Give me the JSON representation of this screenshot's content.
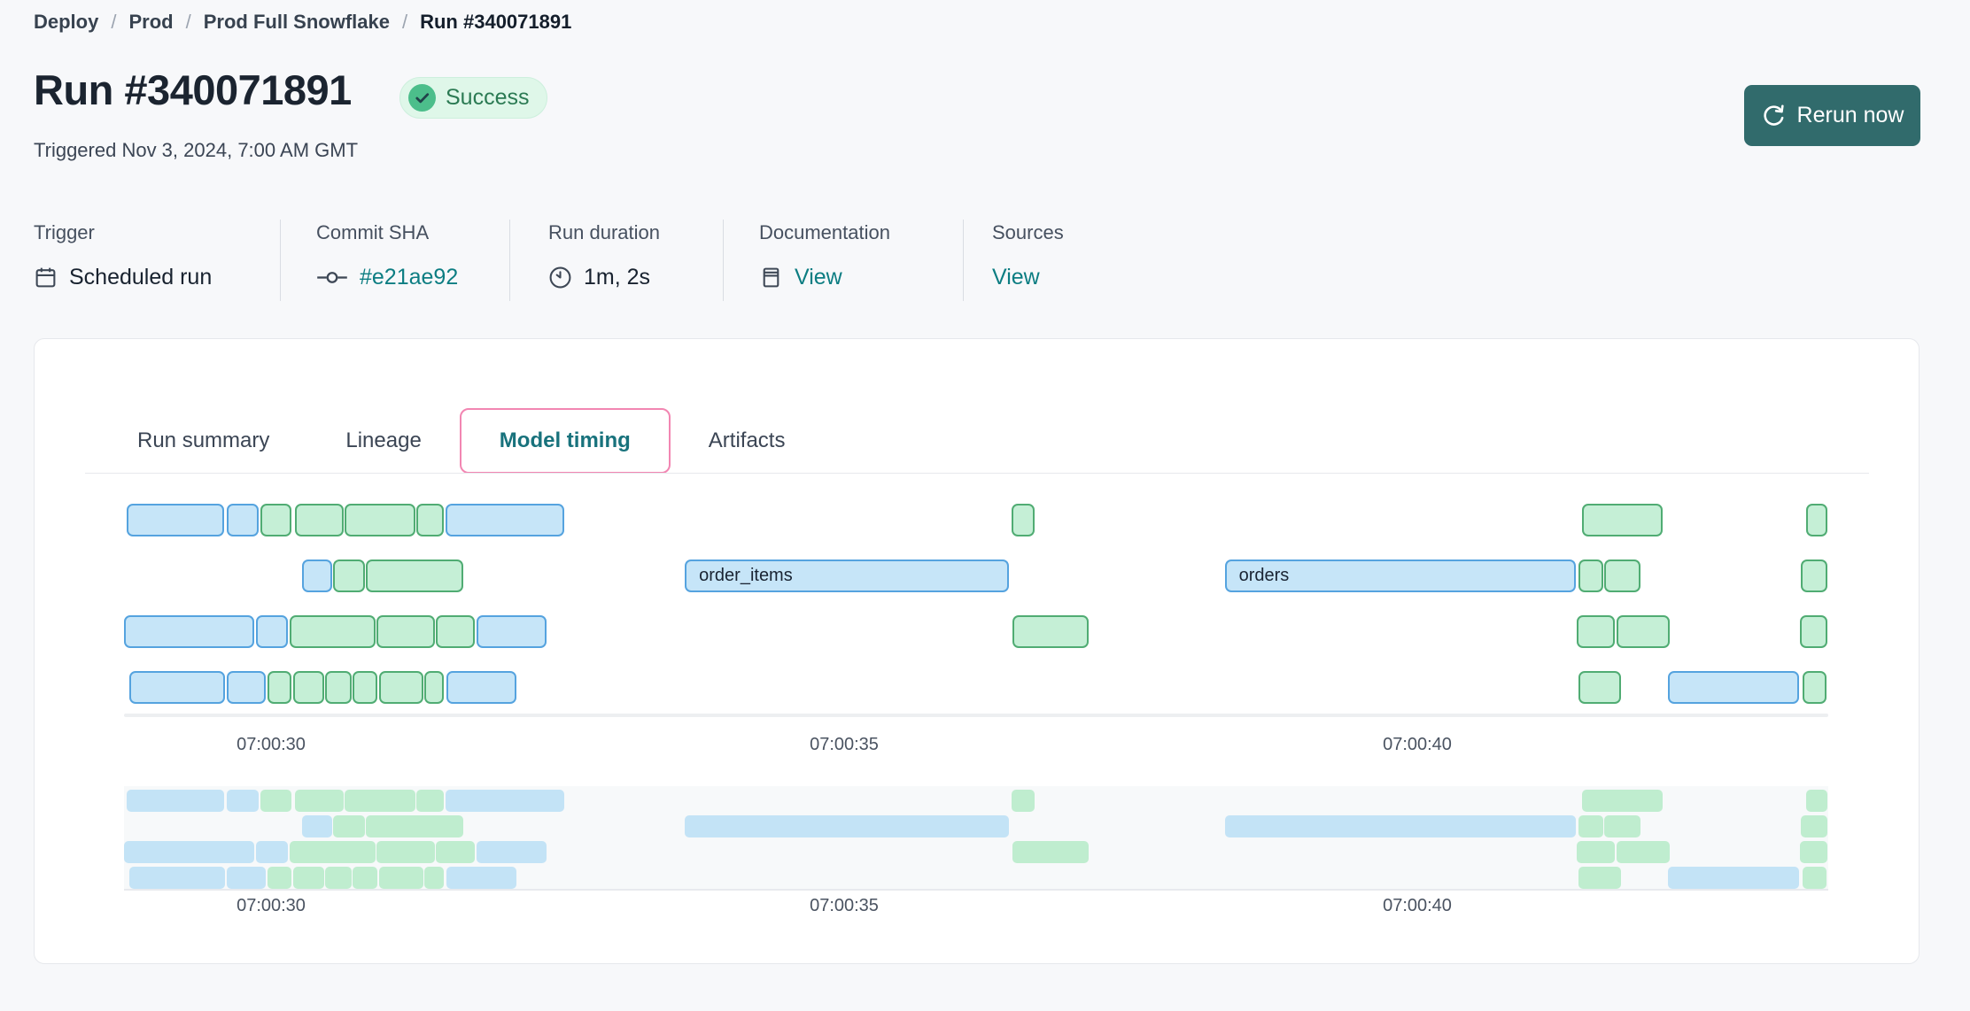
{
  "breadcrumb": {
    "separator": "/",
    "items": [
      {
        "label": "Deploy"
      },
      {
        "label": "Prod"
      },
      {
        "label": "Prod Full Snowflake"
      },
      {
        "label": "Run #340071891"
      }
    ]
  },
  "header": {
    "title": "Run #340071891",
    "status_label": "Success",
    "triggered_text": "Triggered Nov 3, 2024, 7:00 AM GMT",
    "rerun_label": "Rerun now"
  },
  "meta": {
    "items": [
      {
        "label": "Trigger",
        "value": "Scheduled run",
        "icon": "calendar-icon",
        "link": false
      },
      {
        "label": "Commit SHA",
        "value": "#e21ae92",
        "icon": "commit-icon",
        "link": true
      },
      {
        "label": "Run duration",
        "value": "1m, 2s",
        "icon": "clock-icon",
        "link": false
      },
      {
        "label": "Documentation",
        "value": "View",
        "icon": "document-icon",
        "link": true
      },
      {
        "label": "Sources",
        "value": "View",
        "icon": null,
        "link": true
      }
    ]
  },
  "tabs": [
    {
      "label": "Run summary",
      "active": false
    },
    {
      "label": "Lineage",
      "active": false
    },
    {
      "label": "Model timing",
      "active": true
    },
    {
      "label": "Artifacts",
      "active": false
    }
  ],
  "chart_data": {
    "type": "gantt",
    "title": "Model timing",
    "time_unit": "seconds after 07:00:00 GMT",
    "time_axis": {
      "domain": [
        28.7,
        43.6
      ],
      "ticks": [
        {
          "t": 30,
          "label": "07:00:30"
        },
        {
          "t": 35,
          "label": "07:00:35"
        },
        {
          "t": 40,
          "label": "07:00:40"
        }
      ]
    },
    "colors": {
      "blue_fill": "#C6E5F8",
      "blue_border": "#55A3DF",
      "green_fill": "#C5EFD6",
      "green_border": "#50AC73"
    },
    "rows": 4,
    "bars": [
      {
        "row": 0,
        "start": 28.74,
        "end": 29.59,
        "color": "blue"
      },
      {
        "row": 0,
        "start": 29.61,
        "end": 29.89,
        "color": "blue"
      },
      {
        "row": 0,
        "start": 29.91,
        "end": 30.18,
        "color": "green"
      },
      {
        "row": 0,
        "start": 30.21,
        "end": 30.63,
        "color": "green"
      },
      {
        "row": 0,
        "start": 30.64,
        "end": 31.26,
        "color": "green"
      },
      {
        "row": 0,
        "start": 31.27,
        "end": 31.51,
        "color": "green"
      },
      {
        "row": 0,
        "start": 31.52,
        "end": 32.56,
        "color": "blue"
      },
      {
        "row": 0,
        "start": 36.46,
        "end": 36.66,
        "color": "green"
      },
      {
        "row": 0,
        "start": 41.44,
        "end": 42.14,
        "color": "green"
      },
      {
        "row": 0,
        "start": 43.39,
        "end": 43.58,
        "color": "green"
      },
      {
        "row": 1,
        "start": 30.27,
        "end": 30.53,
        "color": "blue"
      },
      {
        "row": 1,
        "start": 30.54,
        "end": 30.82,
        "color": "green"
      },
      {
        "row": 1,
        "start": 30.83,
        "end": 31.68,
        "color": "green"
      },
      {
        "row": 1,
        "start": 33.61,
        "end": 36.44,
        "color": "blue",
        "label": "order_items"
      },
      {
        "row": 1,
        "start": 38.32,
        "end": 41.38,
        "color": "blue",
        "label": "orders"
      },
      {
        "row": 1,
        "start": 41.41,
        "end": 41.62,
        "color": "green"
      },
      {
        "row": 1,
        "start": 41.63,
        "end": 41.95,
        "color": "green"
      },
      {
        "row": 1,
        "start": 43.35,
        "end": 43.58,
        "color": "green"
      },
      {
        "row": 2,
        "start": 28.72,
        "end": 29.85,
        "color": "blue"
      },
      {
        "row": 2,
        "start": 29.87,
        "end": 30.15,
        "color": "blue"
      },
      {
        "row": 2,
        "start": 30.16,
        "end": 30.91,
        "color": "green"
      },
      {
        "row": 2,
        "start": 30.92,
        "end": 31.43,
        "color": "green"
      },
      {
        "row": 2,
        "start": 31.44,
        "end": 31.78,
        "color": "green"
      },
      {
        "row": 2,
        "start": 31.79,
        "end": 32.4,
        "color": "blue"
      },
      {
        "row": 2,
        "start": 36.47,
        "end": 37.13,
        "color": "green"
      },
      {
        "row": 2,
        "start": 41.39,
        "end": 41.72,
        "color": "green"
      },
      {
        "row": 2,
        "start": 41.74,
        "end": 42.2,
        "color": "green"
      },
      {
        "row": 2,
        "start": 43.34,
        "end": 43.58,
        "color": "green"
      },
      {
        "row": 3,
        "start": 28.76,
        "end": 29.6,
        "color": "blue"
      },
      {
        "row": 3,
        "start": 29.61,
        "end": 29.95,
        "color": "blue"
      },
      {
        "row": 3,
        "start": 29.97,
        "end": 30.18,
        "color": "green"
      },
      {
        "row": 3,
        "start": 30.19,
        "end": 30.46,
        "color": "green"
      },
      {
        "row": 3,
        "start": 30.47,
        "end": 30.7,
        "color": "green"
      },
      {
        "row": 3,
        "start": 30.71,
        "end": 30.93,
        "color": "green"
      },
      {
        "row": 3,
        "start": 30.94,
        "end": 31.33,
        "color": "green"
      },
      {
        "row": 3,
        "start": 31.34,
        "end": 31.51,
        "color": "green"
      },
      {
        "row": 3,
        "start": 31.53,
        "end": 32.14,
        "color": "blue"
      },
      {
        "row": 3,
        "start": 41.41,
        "end": 41.78,
        "color": "green"
      },
      {
        "row": 3,
        "start": 42.19,
        "end": 43.33,
        "color": "blue"
      },
      {
        "row": 3,
        "start": 43.36,
        "end": 43.57,
        "color": "green"
      }
    ]
  }
}
